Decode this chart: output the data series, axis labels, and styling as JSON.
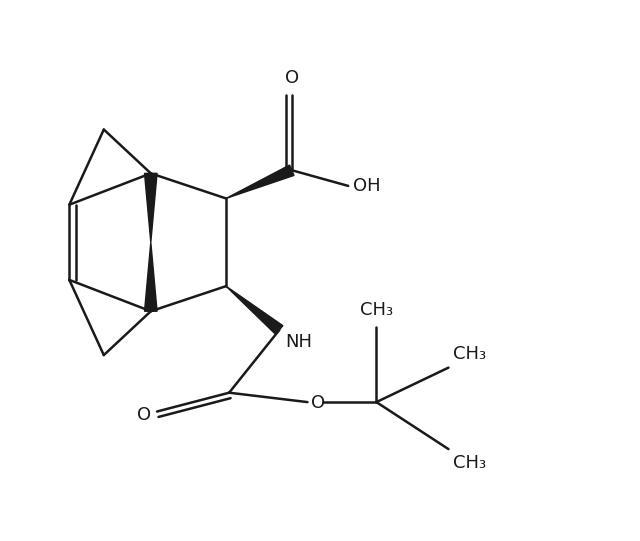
{
  "background_color": "#ffffff",
  "line_color": "#1a1a1a",
  "text_color": "#1a1a1a",
  "line_width": 1.8,
  "font_size": 13,
  "fig_width": 6.4,
  "fig_height": 5.41,
  "dpi": 100,
  "xlim": [
    0,
    10
  ],
  "ylim": [
    0,
    8.5
  ]
}
